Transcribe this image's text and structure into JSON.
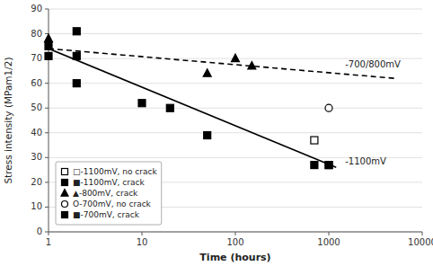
{
  "chart_data": {
    "type": "scatter",
    "xlabel": "Time (hours)",
    "ylabel": "Stress intensity (MPam1/2)",
    "log": "x",
    "xlim": [
      1,
      10000
    ],
    "xticks": [
      1,
      10,
      100,
      1000,
      10000
    ],
    "ylim": [
      0,
      90
    ],
    "yticks": [
      0,
      10,
      20,
      30,
      40,
      50,
      60,
      70,
      80,
      90
    ],
    "grid": true,
    "legend": "lower left",
    "series": [
      {
        "type": "line",
        "color": "black",
        "line_style": "solid",
        "x": [
          1,
          1200
        ],
        "values": [
          74,
          26
        ]
      },
      {
        "type": "line",
        "color": "black",
        "line_style": "dashed",
        "x": [
          1,
          5000
        ],
        "values": [
          74,
          62
        ]
      },
      {
        "name": "□-1100mV, no crack",
        "type": "scatter",
        "color": "black",
        "marker": "open-square",
        "x": [
          700,
          1000
        ],
        "values": [
          37,
          27
        ]
      },
      {
        "name": "■-1100mV, crack",
        "type": "scatter",
        "color": "black",
        "marker": "square",
        "x": [
          1,
          2,
          2,
          10,
          20,
          50,
          700,
          1000
        ],
        "values": [
          71,
          81,
          71,
          52,
          50,
          39,
          27,
          27
        ]
      },
      {
        "name": "▲-800mV, crack",
        "type": "scatter",
        "color": "black",
        "marker": "triangle",
        "x": [
          1,
          50,
          100,
          150
        ],
        "values": [
          78,
          64,
          70,
          67
        ]
      },
      {
        "name": "O-700mV, no crack",
        "type": "scatter",
        "color": "black",
        "marker": "open-circle",
        "x": [
          1000
        ],
        "values": [
          50
        ]
      },
      {
        "name": "■-700mV, crack",
        "type": "scatter",
        "color": "black",
        "marker": "square",
        "x": [
          1,
          2
        ],
        "values": [
          75,
          60
        ]
      }
    ],
    "annotations": [
      {
        "text": "-1100mV",
        "x": 1400,
        "y": 25.5
      },
      {
        "text": "-700/800mV",
        "x": 1400,
        "y": 64.5
      }
    ]
  }
}
